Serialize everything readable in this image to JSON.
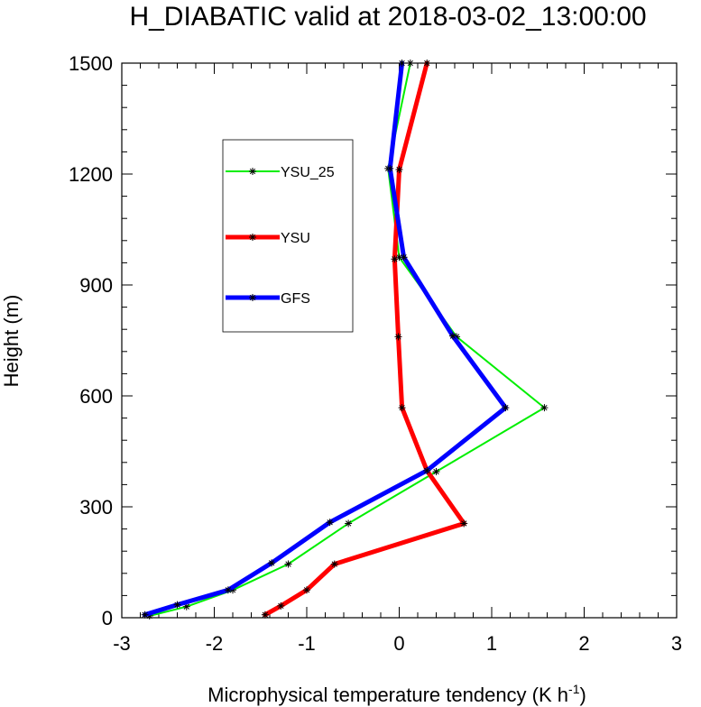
{
  "chart_data": {
    "type": "line",
    "title": "H_DIABATIC valid at 2018-03-02_13:00:00",
    "xlabel": "Microphysical temperature tendency (K h",
    "xlabel_sup": "-1",
    "xlabel_end": ")",
    "ylabel": "Height (m)",
    "xlim": [
      -3,
      3
    ],
    "ylim": [
      0,
      1500
    ],
    "x_ticks": [
      -3,
      -2,
      -1,
      0,
      1,
      2,
      3
    ],
    "x_tick_labels": [
      "-3",
      "-2",
      "-1",
      "0",
      "1",
      "2",
      "3"
    ],
    "y_ticks": [
      0,
      300,
      600,
      900,
      1200,
      1500
    ],
    "y_tick_labels": [
      "0",
      "300",
      "600",
      "900",
      "1200",
      "1500"
    ],
    "legend_position": "upper-left",
    "marker_color": "#000000",
    "series": [
      {
        "name": "YSU_25",
        "color": "#00ee00",
        "width": 2,
        "points": [
          [
            -2.7,
            5
          ],
          [
            -2.3,
            30
          ],
          [
            -1.8,
            75
          ],
          [
            -1.2,
            145
          ],
          [
            -0.55,
            255
          ],
          [
            0.4,
            395
          ],
          [
            1.57,
            568
          ],
          [
            0.62,
            760
          ],
          [
            0.0,
            975
          ],
          [
            -0.12,
            1215
          ],
          [
            0.12,
            1500
          ]
        ]
      },
      {
        "name": "YSU",
        "color": "#ff0000",
        "width": 5,
        "points": [
          [
            -1.45,
            8
          ],
          [
            -1.28,
            32
          ],
          [
            -1.0,
            75
          ],
          [
            -0.7,
            145
          ],
          [
            0.7,
            255
          ],
          [
            0.3,
            398
          ],
          [
            0.03,
            568
          ],
          [
            -0.01,
            760
          ],
          [
            -0.05,
            970
          ],
          [
            0.0,
            1212
          ],
          [
            0.3,
            1500
          ]
        ]
      },
      {
        "name": "GFS",
        "color": "#0000ff",
        "width": 5,
        "points": [
          [
            -2.75,
            8
          ],
          [
            -2.4,
            35
          ],
          [
            -1.85,
            75
          ],
          [
            -1.38,
            148
          ],
          [
            -0.75,
            258
          ],
          [
            0.3,
            398
          ],
          [
            1.15,
            568
          ],
          [
            0.58,
            762
          ],
          [
            0.05,
            975
          ],
          [
            -0.1,
            1215
          ],
          [
            0.03,
            1500
          ]
        ]
      }
    ]
  }
}
